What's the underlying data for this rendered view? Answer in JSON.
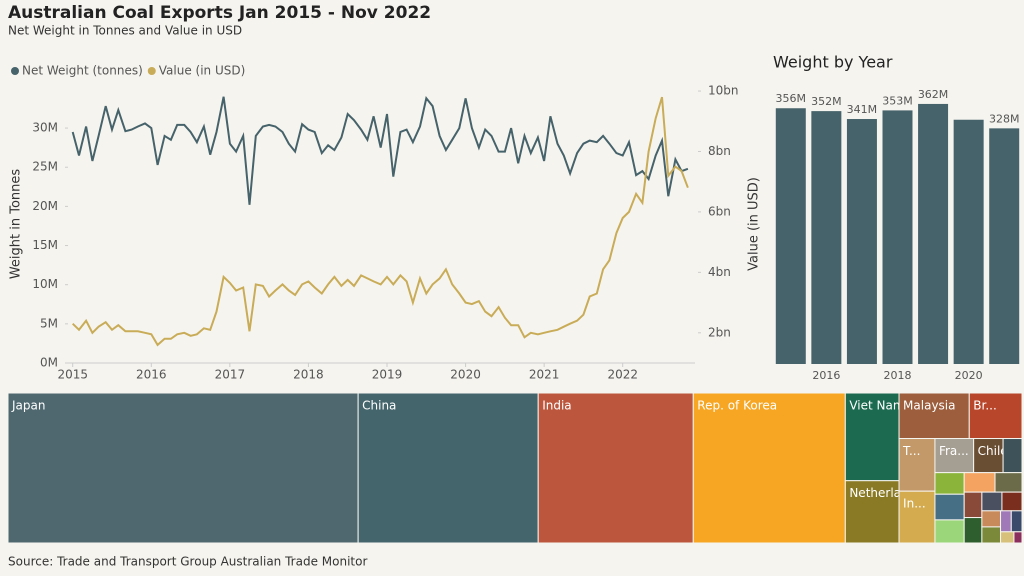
{
  "title": "Australian Coal Exports Jan 2015 - Nov 2022",
  "subtitle": "Net Weight in Tonnes and Value in USD",
  "source": "Source: Trade and Transport Group Australian Trade Monitor",
  "chart_data": [
    {
      "type": "line",
      "x": [
        2015,
        2015.08,
        2015.17,
        2015.25,
        2015.33,
        2015.42,
        2015.5,
        2015.58,
        2015.67,
        2015.75,
        2015.83,
        2015.92,
        2016,
        2016.08,
        2016.17,
        2016.25,
        2016.33,
        2016.42,
        2016.5,
        2016.58,
        2016.67,
        2016.75,
        2016.83,
        2016.92,
        2017,
        2017.08,
        2017.17,
        2017.25,
        2017.33,
        2017.42,
        2017.5,
        2017.58,
        2017.67,
        2017.75,
        2017.83,
        2017.92,
        2018,
        2018.08,
        2018.17,
        2018.25,
        2018.33,
        2018.42,
        2018.5,
        2018.58,
        2018.67,
        2018.75,
        2018.83,
        2018.92,
        2019,
        2019.08,
        2019.17,
        2019.25,
        2019.33,
        2019.42,
        2019.5,
        2019.58,
        2019.67,
        2019.75,
        2019.83,
        2019.92,
        2020,
        2020.08,
        2020.17,
        2020.25,
        2020.33,
        2020.42,
        2020.5,
        2020.58,
        2020.67,
        2020.75,
        2020.83,
        2020.92,
        2021,
        2021.08,
        2021.17,
        2021.25,
        2021.33,
        2021.42,
        2021.5,
        2021.58,
        2021.67,
        2021.75,
        2021.83,
        2021.92,
        2022,
        2022.08,
        2022.17,
        2022.25,
        2022.33,
        2022.42,
        2022.5,
        2022.58,
        2022.67,
        2022.75,
        2022.83
      ],
      "series": [
        {
          "name": "Net Weight (tonnes)",
          "color": "#46636b",
          "values": [
            29.5,
            26.5,
            30.2,
            25.8,
            29,
            32.8,
            29.8,
            32.3,
            29.6,
            29.8,
            30.2,
            30.6,
            30,
            25.3,
            29,
            28.5,
            30.4,
            30.4,
            29.5,
            28.2,
            30.2,
            26.6,
            29.5,
            34,
            28,
            27,
            29,
            20.2,
            29,
            30.2,
            30.4,
            30.2,
            29.5,
            28,
            27,
            30.5,
            29.8,
            29.5,
            26.8,
            27.8,
            27.2,
            28.8,
            31.8,
            31,
            29.8,
            28.5,
            31.5,
            27.5,
            31.8,
            23.8,
            29.5,
            29.8,
            28.2,
            30.2,
            33.8,
            32.8,
            29,
            27.2,
            28.5,
            30,
            33.8,
            30,
            27.5,
            29.8,
            29,
            27,
            27,
            30,
            25.5,
            29,
            26.8,
            28.8,
            25.8,
            31.5,
            28,
            26.5,
            24.2,
            26.8,
            28,
            28.4,
            28.2,
            29,
            28,
            26.8,
            26.5,
            28.2,
            24,
            24.5,
            23.5,
            26.5,
            28.4,
            21.3,
            26,
            24.5,
            24.8
          ]
        },
        {
          "name": "Value (in USD)",
          "color": "#c9ac58",
          "axis": "y2",
          "values": [
            2.3,
            2.1,
            2.4,
            2.0,
            2.2,
            2.35,
            2.1,
            2.25,
            2.05,
            2.05,
            2.05,
            2.0,
            1.95,
            1.6,
            1.8,
            1.8,
            1.95,
            2.0,
            1.9,
            1.95,
            2.15,
            2.1,
            2.7,
            3.85,
            3.65,
            3.4,
            3.5,
            2.05,
            3.6,
            3.55,
            3.2,
            3.4,
            3.6,
            3.4,
            3.25,
            3.6,
            3.7,
            3.5,
            3.3,
            3.6,
            3.85,
            3.55,
            3.75,
            3.55,
            3.9,
            3.8,
            3.7,
            3.6,
            3.85,
            3.6,
            3.9,
            3.7,
            3.0,
            3.8,
            3.3,
            3.6,
            3.8,
            4.1,
            3.6,
            3.3,
            3.0,
            2.95,
            3.05,
            2.7,
            2.55,
            2.85,
            2.5,
            2.25,
            2.25,
            1.85,
            2.0,
            1.95,
            2.0,
            2.05,
            2.1,
            2.2,
            2.3,
            2.4,
            2.6,
            3.2,
            3.3,
            4.1,
            4.4,
            5.3,
            5.8,
            6.0,
            6.6,
            6.3,
            8.0,
            9.1,
            9.8,
            7.2,
            7.5,
            7.35,
            6.8
          ]
        }
      ],
      "xlim": [
        2014.94,
        2022.92
      ],
      "xticks": [
        2015,
        2016,
        2017,
        2018,
        2019,
        2020,
        2021,
        2022
      ],
      "ylim": [
        0,
        35.5
      ],
      "yticks": [
        {
          "value": 0,
          "label": "0M"
        },
        {
          "value": 5,
          "label": "5M"
        },
        {
          "value": 10,
          "label": "10M"
        },
        {
          "value": 15,
          "label": "15M"
        },
        {
          "value": 20,
          "label": "20M"
        },
        {
          "value": 25,
          "label": "25M"
        },
        {
          "value": 30,
          "label": "30M"
        }
      ],
      "y2lim": [
        1,
        10.2
      ],
      "y2ticks": [
        {
          "value": 2,
          "label": "2bn"
        },
        {
          "value": 4,
          "label": "4bn"
        },
        {
          "value": 6,
          "label": "6bn"
        },
        {
          "value": 8,
          "label": "8bn"
        },
        {
          "value": 10,
          "label": "10bn"
        }
      ],
      "ylabel": "Weight in Tonnes",
      "y2label": "Value (in USD)",
      "legend": "top-left",
      "grid": false
    },
    {
      "type": "bar",
      "title": "Weight by Year",
      "categories": [
        null,
        "2016",
        null,
        "2018",
        null,
        "2020",
        null
      ],
      "values": [
        356,
        352,
        341,
        353,
        362,
        340,
        328
      ],
      "value_labels": [
        "356M",
        "352M",
        "341M",
        "353M",
        "362M",
        null,
        "328M"
      ],
      "color": "#46636b",
      "ylim": [
        0,
        380
      ]
    },
    {
      "type": "treemap",
      "names": [
        "Japan",
        "China",
        "India",
        "Rep. of Korea",
        "Viet Nam",
        "Netherla...",
        "Malaysia",
        "Br...",
        "T...",
        "In...",
        "Fra...",
        "Chile",
        null,
        null,
        null,
        null,
        null,
        null,
        null,
        null,
        null,
        null,
        null,
        null,
        null,
        null,
        null,
        null
      ],
      "values": [
        350,
        180,
        155,
        152,
        31.4,
        22.3,
        21.3,
        16,
        12.6,
        12.4,
        8.8,
        6.7,
        4.3,
        4.2,
        5,
        4.5,
        4,
        3.5,
        3,
        3,
        2.5,
        2.5,
        2,
        2,
        1.5,
        1.5,
        1,
        0.6
      ],
      "colors": [
        "#4f6870",
        "#44656c",
        "#bc573e",
        "#f6a623",
        "#1c6b50",
        "#8a7a25",
        "#9c5e3c",
        "#b8462a",
        "#c4996a",
        "#d4ac4f",
        "#a59e92",
        "#6a4e33",
        "#3e525a",
        "#8ab43a",
        "#466e85",
        "#9bd67a",
        "#f4a460",
        "#6b6b4a",
        "#8a4a3a",
        "#2e5e2e",
        "#4a5060",
        "#7a2e1e",
        "#c88a5a",
        "#7a8a3a",
        "#a07ab8",
        "#3a4a6a",
        "#d6c07a",
        "#8b2e5e"
      ]
    }
  ]
}
